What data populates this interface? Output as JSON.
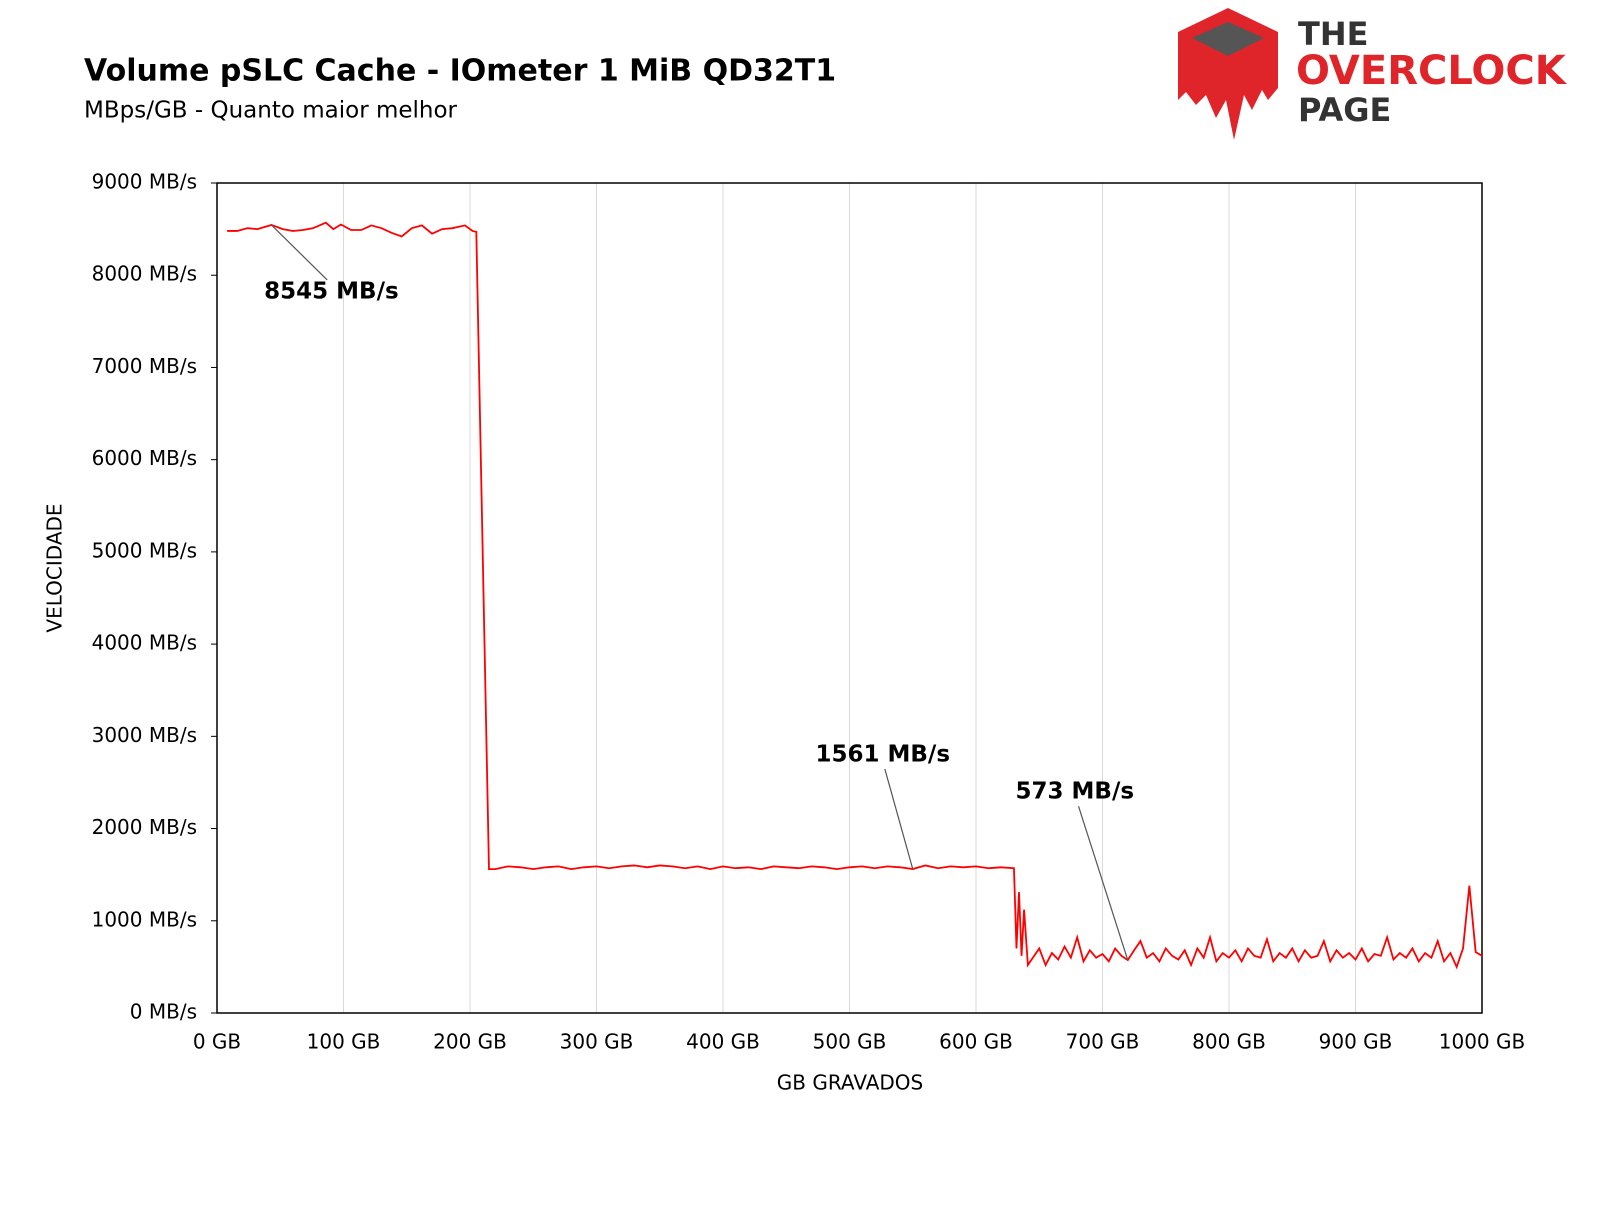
{
  "chart_data": {
    "type": "line",
    "title": "Volume pSLC Cache - IOmeter 1 MiB QD32T1",
    "subtitle": "MBps/GB - Quanto maior melhor",
    "x_label": "GB GRAVADOS",
    "y_label": "VELOCIDADE",
    "color": "#ff0000",
    "xgrid": true,
    "xlim": [
      0,
      1000
    ],
    "ylim": [
      0,
      9000
    ],
    "xticks": [
      {
        "value": 0,
        "label": "0 GB"
      },
      {
        "value": 100,
        "label": "100 GB"
      },
      {
        "value": 200,
        "label": "200 GB"
      },
      {
        "value": 300,
        "label": "300 GB"
      },
      {
        "value": 400,
        "label": "400 GB"
      },
      {
        "value": 500,
        "label": "500 GB"
      },
      {
        "value": 600,
        "label": "600 GB"
      },
      {
        "value": 700,
        "label": "700 GB"
      },
      {
        "value": 800,
        "label": "800 GB"
      },
      {
        "value": 900,
        "label": "900 GB"
      },
      {
        "value": 1000,
        "label": "1000 GB"
      }
    ],
    "yticks": [
      {
        "value": 0,
        "label": "0 MB/s"
      },
      {
        "value": 1000,
        "label": "1000 MB/s"
      },
      {
        "value": 2000,
        "label": "2000 MB/s"
      },
      {
        "value": 3000,
        "label": "3000 MB/s"
      },
      {
        "value": 4000,
        "label": "4000 MB/s"
      },
      {
        "value": 5000,
        "label": "5000 MB/s"
      },
      {
        "value": 6000,
        "label": "6000 MB/s"
      },
      {
        "value": 7000,
        "label": "7000 MB/s"
      },
      {
        "value": 8000,
        "label": "8000 MB/s"
      },
      {
        "value": 9000,
        "label": "9000 MB/s"
      }
    ],
    "annotations": [
      {
        "label": "8545 MB/s",
        "x": 43,
        "value": 8545
      },
      {
        "label": "1561 MB/s",
        "x": 550,
        "value": 1561
      },
      {
        "label": "573 MB/s",
        "x": 720,
        "value": 573
      }
    ],
    "x": [
      8,
      16,
      24,
      32,
      43,
      52,
      60,
      68,
      76,
      86,
      92,
      98,
      106,
      114,
      122,
      130,
      138,
      146,
      154,
      162,
      170,
      178,
      186,
      196,
      202,
      205,
      215,
      220,
      230,
      240,
      250,
      260,
      270,
      280,
      290,
      300,
      310,
      320,
      330,
      340,
      350,
      360,
      370,
      380,
      390,
      400,
      410,
      420,
      430,
      440,
      450,
      460,
      470,
      480,
      490,
      500,
      510,
      520,
      530,
      540,
      550,
      560,
      570,
      580,
      590,
      600,
      610,
      620,
      630,
      632,
      634,
      636,
      638,
      641,
      645,
      650,
      655,
      660,
      665,
      670,
      675,
      680,
      685,
      690,
      695,
      700,
      705,
      710,
      715,
      720,
      725,
      730,
      735,
      740,
      745,
      750,
      755,
      760,
      765,
      770,
      775,
      780,
      785,
      790,
      795,
      800,
      805,
      810,
      815,
      820,
      825,
      830,
      835,
      840,
      845,
      850,
      855,
      860,
      865,
      870,
      875,
      880,
      885,
      890,
      895,
      900,
      905,
      910,
      915,
      920,
      925,
      930,
      935,
      940,
      945,
      950,
      955,
      960,
      965,
      970,
      975,
      980,
      985,
      990,
      995,
      1000
    ],
    "values": [
      8480,
      8480,
      8510,
      8500,
      8545,
      8500,
      8480,
      8490,
      8510,
      8570,
      8500,
      8550,
      8490,
      8490,
      8540,
      8510,
      8460,
      8420,
      8510,
      8540,
      8450,
      8500,
      8510,
      8540,
      8480,
      8470,
      1560,
      1560,
      1590,
      1580,
      1560,
      1580,
      1590,
      1560,
      1580,
      1590,
      1570,
      1590,
      1600,
      1580,
      1600,
      1590,
      1570,
      1590,
      1560,
      1590,
      1570,
      1580,
      1560,
      1590,
      1580,
      1570,
      1590,
      1580,
      1560,
      1580,
      1590,
      1570,
      1590,
      1580,
      1561,
      1600,
      1570,
      1590,
      1580,
      1590,
      1570,
      1580,
      1570,
      700,
      1310,
      620,
      1120,
      520,
      600,
      700,
      520,
      650,
      580,
      720,
      600,
      820,
      560,
      680,
      600,
      640,
      560,
      700,
      620,
      573,
      680,
      780,
      600,
      650,
      560,
      700,
      620,
      580,
      680,
      520,
      700,
      600,
      820,
      560,
      650,
      600,
      680,
      560,
      700,
      620,
      600,
      800,
      560,
      650,
      600,
      700,
      560,
      680,
      600,
      620,
      780,
      560,
      680,
      600,
      650,
      580,
      700,
      560,
      640,
      620,
      820,
      580,
      650,
      600,
      700,
      560,
      650,
      600,
      780,
      560,
      650,
      500,
      700,
      1380,
      660,
      620
    ]
  },
  "logo": {
    "line1": "THE",
    "line2": "OVERCLOCK",
    "line3": "PAGE"
  }
}
